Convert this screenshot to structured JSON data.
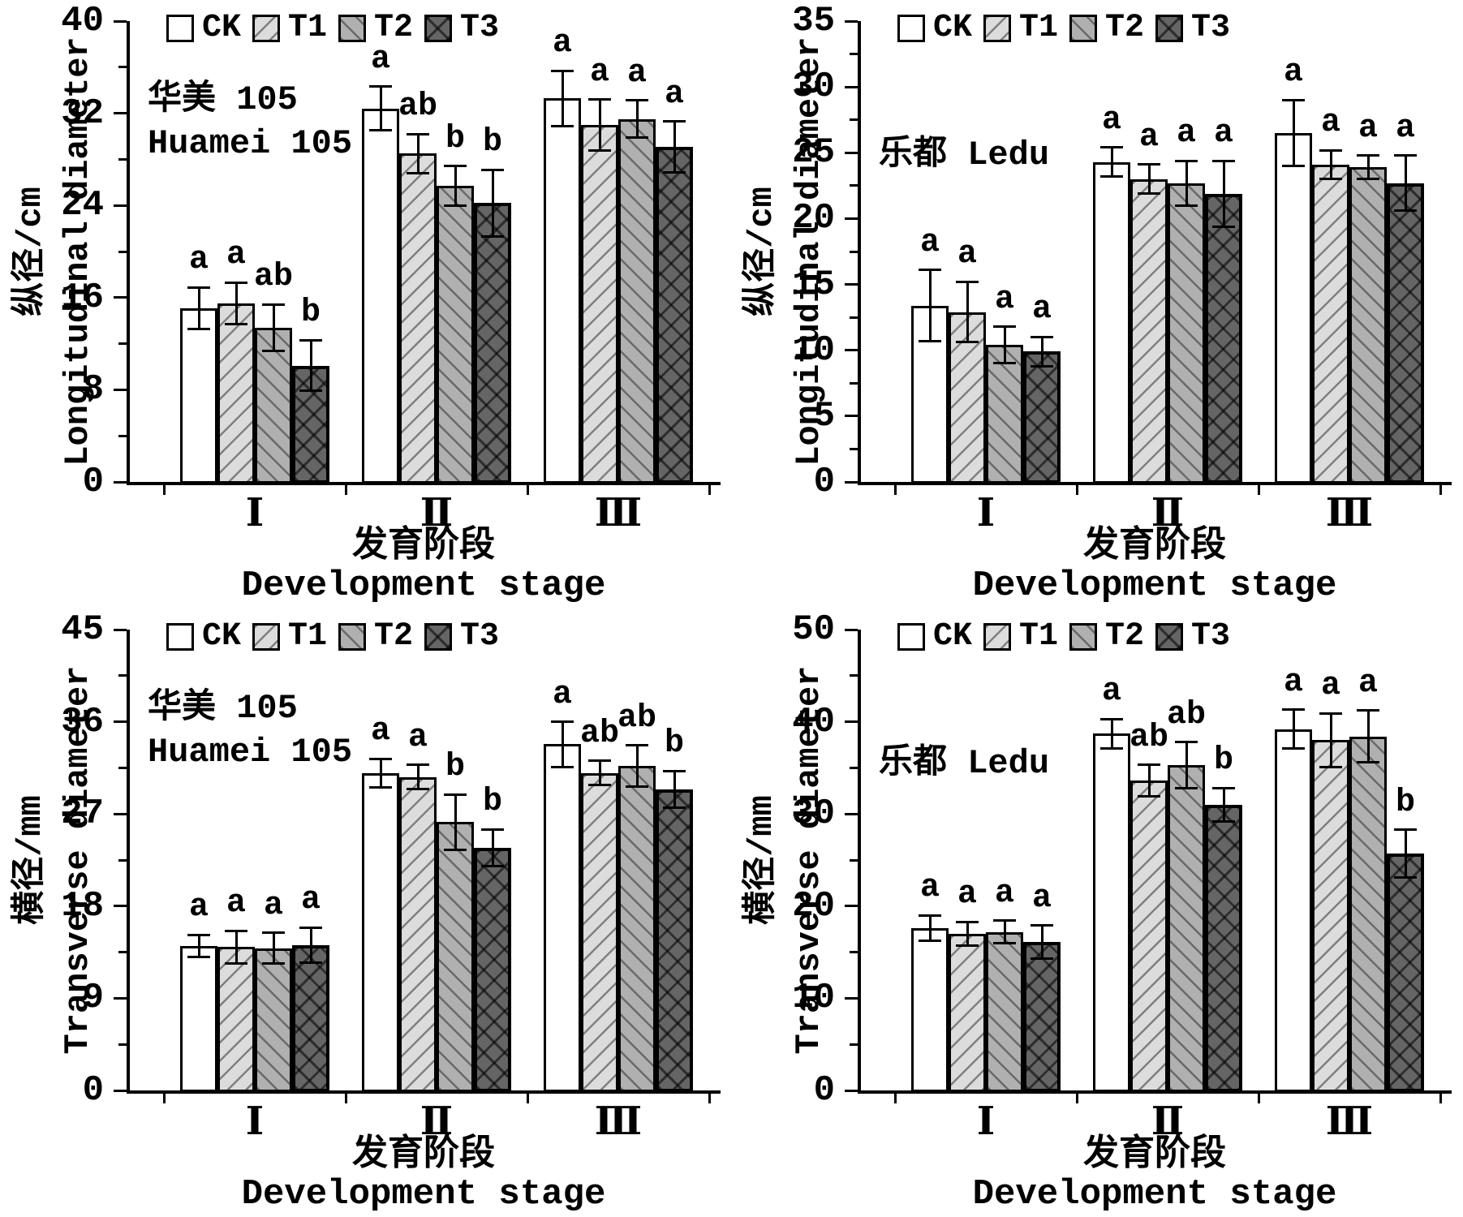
{
  "figure": {
    "background": "#ffffff",
    "text_color": "#000000",
    "legend_position": "top-inside",
    "grid": false,
    "legend": [
      {
        "label": "CK",
        "fill": "#ffffff",
        "hatch": "none"
      },
      {
        "label": "T1",
        "fill": "#dcdcdc",
        "hatch": "/"
      },
      {
        "label": "T2",
        "fill": "#b0b0b0",
        "hatch": "\\"
      },
      {
        "label": "T3",
        "fill": "#656565",
        "hatch": "x"
      }
    ],
    "x_title_zh": "发育阶段",
    "x_title_en": "Development stage",
    "x_categories": [
      "Ⅰ",
      "Ⅱ",
      "Ⅲ"
    ]
  },
  "chart_data": [
    {
      "id": "huamei-longitudinal",
      "type": "bar",
      "cultivar_zh": "华美 105",
      "cultivar_en": "Huamei 105",
      "cultivar_two_lines": true,
      "ylabel_zh": "纵径/cm",
      "ylabel_en": "Longitudinal diameter",
      "xlabel_zh": "发育阶段",
      "xlabel_en": "Development stage",
      "categories": [
        "Ⅰ",
        "Ⅱ",
        "Ⅲ"
      ],
      "ylim": [
        0,
        40
      ],
      "yticks": [
        0,
        8,
        16,
        24,
        32,
        40
      ],
      "series": [
        {
          "name": "CK",
          "values": [
            15.1,
            32.4,
            33.3
          ],
          "errors": [
            1.8,
            1.9,
            2.4
          ],
          "sig_letters": [
            "a",
            "a",
            "a"
          ]
        },
        {
          "name": "T1",
          "values": [
            15.5,
            28.5,
            31.0
          ],
          "errors": [
            1.8,
            1.7,
            2.2
          ],
          "sig_letters": [
            "a",
            "ab",
            "a"
          ]
        },
        {
          "name": "T2",
          "values": [
            13.4,
            25.7,
            31.5
          ],
          "errors": [
            2.0,
            1.7,
            1.6
          ],
          "sig_letters": [
            "ab",
            "b",
            "a"
          ]
        },
        {
          "name": "T3",
          "values": [
            10.1,
            24.2,
            29.1
          ],
          "errors": [
            2.2,
            2.9,
            2.2
          ],
          "sig_letters": [
            "b",
            "b",
            "a"
          ]
        }
      ]
    },
    {
      "id": "ledu-longitudinal",
      "type": "bar",
      "cultivar_zh": "乐都 Ledu",
      "cultivar_en": "",
      "cultivar_two_lines": false,
      "ylabel_zh": "纵径/cm",
      "ylabel_en": "Longitudinal diameter",
      "xlabel_zh": "发育阶段",
      "xlabel_en": "Development stage",
      "categories": [
        "Ⅰ",
        "Ⅱ",
        "Ⅲ"
      ],
      "ylim": [
        0,
        35
      ],
      "yticks": [
        0,
        5,
        10,
        15,
        20,
        25,
        30,
        35
      ],
      "series": [
        {
          "name": "CK",
          "values": [
            13.4,
            24.3,
            26.5
          ],
          "errors": [
            2.7,
            1.1,
            2.5
          ],
          "sig_letters": [
            "a",
            "a",
            "a"
          ]
        },
        {
          "name": "T1",
          "values": [
            12.9,
            23.0,
            24.1
          ],
          "errors": [
            2.3,
            1.1,
            1.1
          ],
          "sig_letters": [
            "a",
            "a",
            "a"
          ]
        },
        {
          "name": "T2",
          "values": [
            10.4,
            22.7,
            23.9
          ],
          "errors": [
            1.4,
            1.7,
            0.9
          ],
          "sig_letters": [
            "a",
            "a",
            "a"
          ]
        },
        {
          "name": "T3",
          "values": [
            9.9,
            21.9,
            22.7
          ],
          "errors": [
            1.1,
            2.5,
            2.1
          ],
          "sig_letters": [
            "a",
            "a",
            "a"
          ]
        }
      ]
    },
    {
      "id": "huamei-transverse",
      "type": "bar",
      "cultivar_zh": "华美 105",
      "cultivar_en": "Huamei 105",
      "cultivar_two_lines": true,
      "ylabel_zh": "横径/mm",
      "ylabel_en": "Transverse diameter",
      "xlabel_zh": "发育阶段",
      "xlabel_en": "Development stage",
      "categories": [
        "Ⅰ",
        "Ⅱ",
        "Ⅲ"
      ],
      "ylim": [
        0,
        45
      ],
      "yticks": [
        0,
        9,
        18,
        27,
        36,
        45
      ],
      "series": [
        {
          "name": "CK",
          "values": [
            14.1,
            31.0,
            33.8
          ],
          "errors": [
            1.1,
            1.4,
            2.2
          ],
          "sig_letters": [
            "a",
            "a",
            "a"
          ]
        },
        {
          "name": "T1",
          "values": [
            14.0,
            30.6,
            31.0
          ],
          "errors": [
            1.6,
            1.2,
            1.2
          ],
          "sig_letters": [
            "a",
            "a",
            "ab"
          ]
        },
        {
          "name": "T2",
          "values": [
            13.9,
            26.2,
            31.7
          ],
          "errors": [
            1.5,
            2.7,
            2.0
          ],
          "sig_letters": [
            "a",
            "b",
            "ab"
          ]
        },
        {
          "name": "T3",
          "values": [
            14.2,
            23.7,
            29.4
          ],
          "errors": [
            1.7,
            1.8,
            1.8
          ],
          "sig_letters": [
            "a",
            "b",
            "b"
          ]
        }
      ]
    },
    {
      "id": "ledu-transverse",
      "type": "bar",
      "cultivar_zh": "乐都 Ledu",
      "cultivar_en": "",
      "cultivar_two_lines": false,
      "ylabel_zh": "横径/mm",
      "ylabel_en": "Transverse diameter",
      "xlabel_zh": "发育阶段",
      "xlabel_en": "Development stage",
      "categories": [
        "Ⅰ",
        "Ⅱ",
        "Ⅲ"
      ],
      "ylim": [
        0,
        50
      ],
      "yticks": [
        0,
        10,
        20,
        30,
        40,
        50
      ],
      "series": [
        {
          "name": "CK",
          "values": [
            17.6,
            38.7,
            39.2
          ],
          "errors": [
            1.4,
            1.6,
            2.1
          ],
          "sig_letters": [
            "a",
            "a",
            "a"
          ]
        },
        {
          "name": "T1",
          "values": [
            17.0,
            33.6,
            38.0
          ],
          "errors": [
            1.3,
            1.7,
            2.9
          ],
          "sig_letters": [
            "a",
            "ab",
            "a"
          ]
        },
        {
          "name": "T2",
          "values": [
            17.2,
            35.3,
            38.4
          ],
          "errors": [
            1.2,
            2.5,
            2.8
          ],
          "sig_letters": [
            "a",
            "ab",
            "a"
          ]
        },
        {
          "name": "T3",
          "values": [
            16.1,
            31.0,
            25.7
          ],
          "errors": [
            1.8,
            1.8,
            2.6
          ],
          "sig_letters": [
            "a",
            "b",
            "b"
          ]
        }
      ]
    }
  ]
}
